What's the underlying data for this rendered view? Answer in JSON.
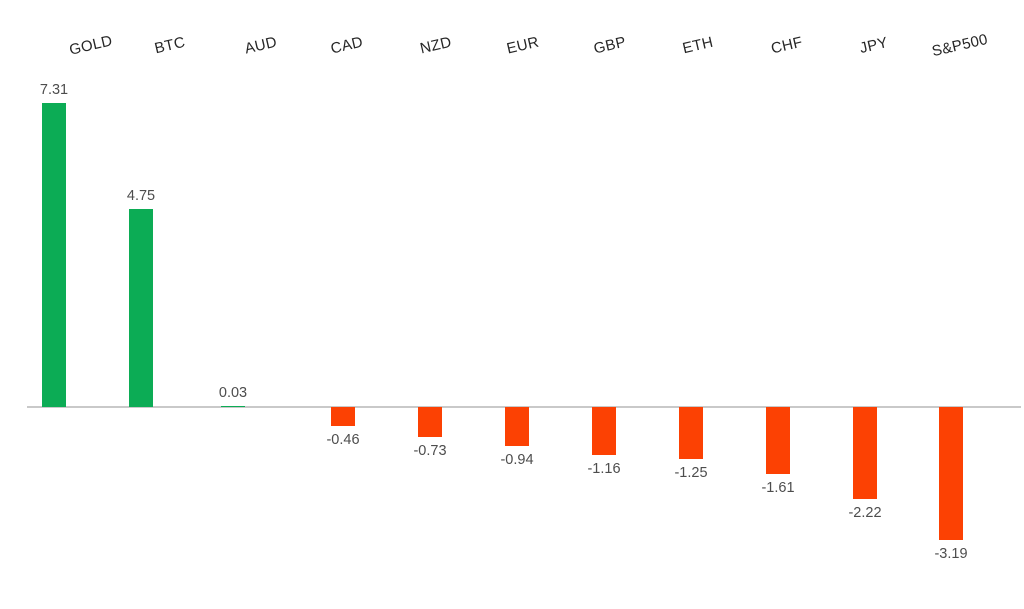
{
  "chart_data": {
    "type": "bar",
    "title": "",
    "xlabel": "",
    "ylabel": "",
    "categories": [
      "GOLD",
      "BTC",
      "AUD",
      "CAD",
      "NZD",
      "EUR",
      "GBP",
      "ETH",
      "CHF",
      "JPY",
      "S&P500"
    ],
    "values": [
      7.31,
      4.75,
      0.03,
      -0.46,
      -0.73,
      -0.94,
      -1.16,
      -1.25,
      -1.61,
      -2.22,
      -3.19
    ],
    "value_labels": [
      "7.31",
      "4.75",
      "0.03",
      "-0.46",
      "-0.73",
      "-0.94",
      "-1.16",
      "-1.25",
      "-1.61",
      "-2.22",
      "-3.19"
    ],
    "ylim": [
      -3.5,
      7.5
    ],
    "grid": false,
    "legend": false,
    "axes_visible": false,
    "zero_baseline_visible": true,
    "category_label_position": "top",
    "category_label_rotation_deg": -13,
    "colors": {
      "positive_bar": "#0CAC55",
      "negative_bar": "#FC4103",
      "baseline": "#C9C9C9",
      "category_label": "#262626",
      "value_label": "#4D4D4D",
      "background": "#FFFFFF"
    }
  }
}
